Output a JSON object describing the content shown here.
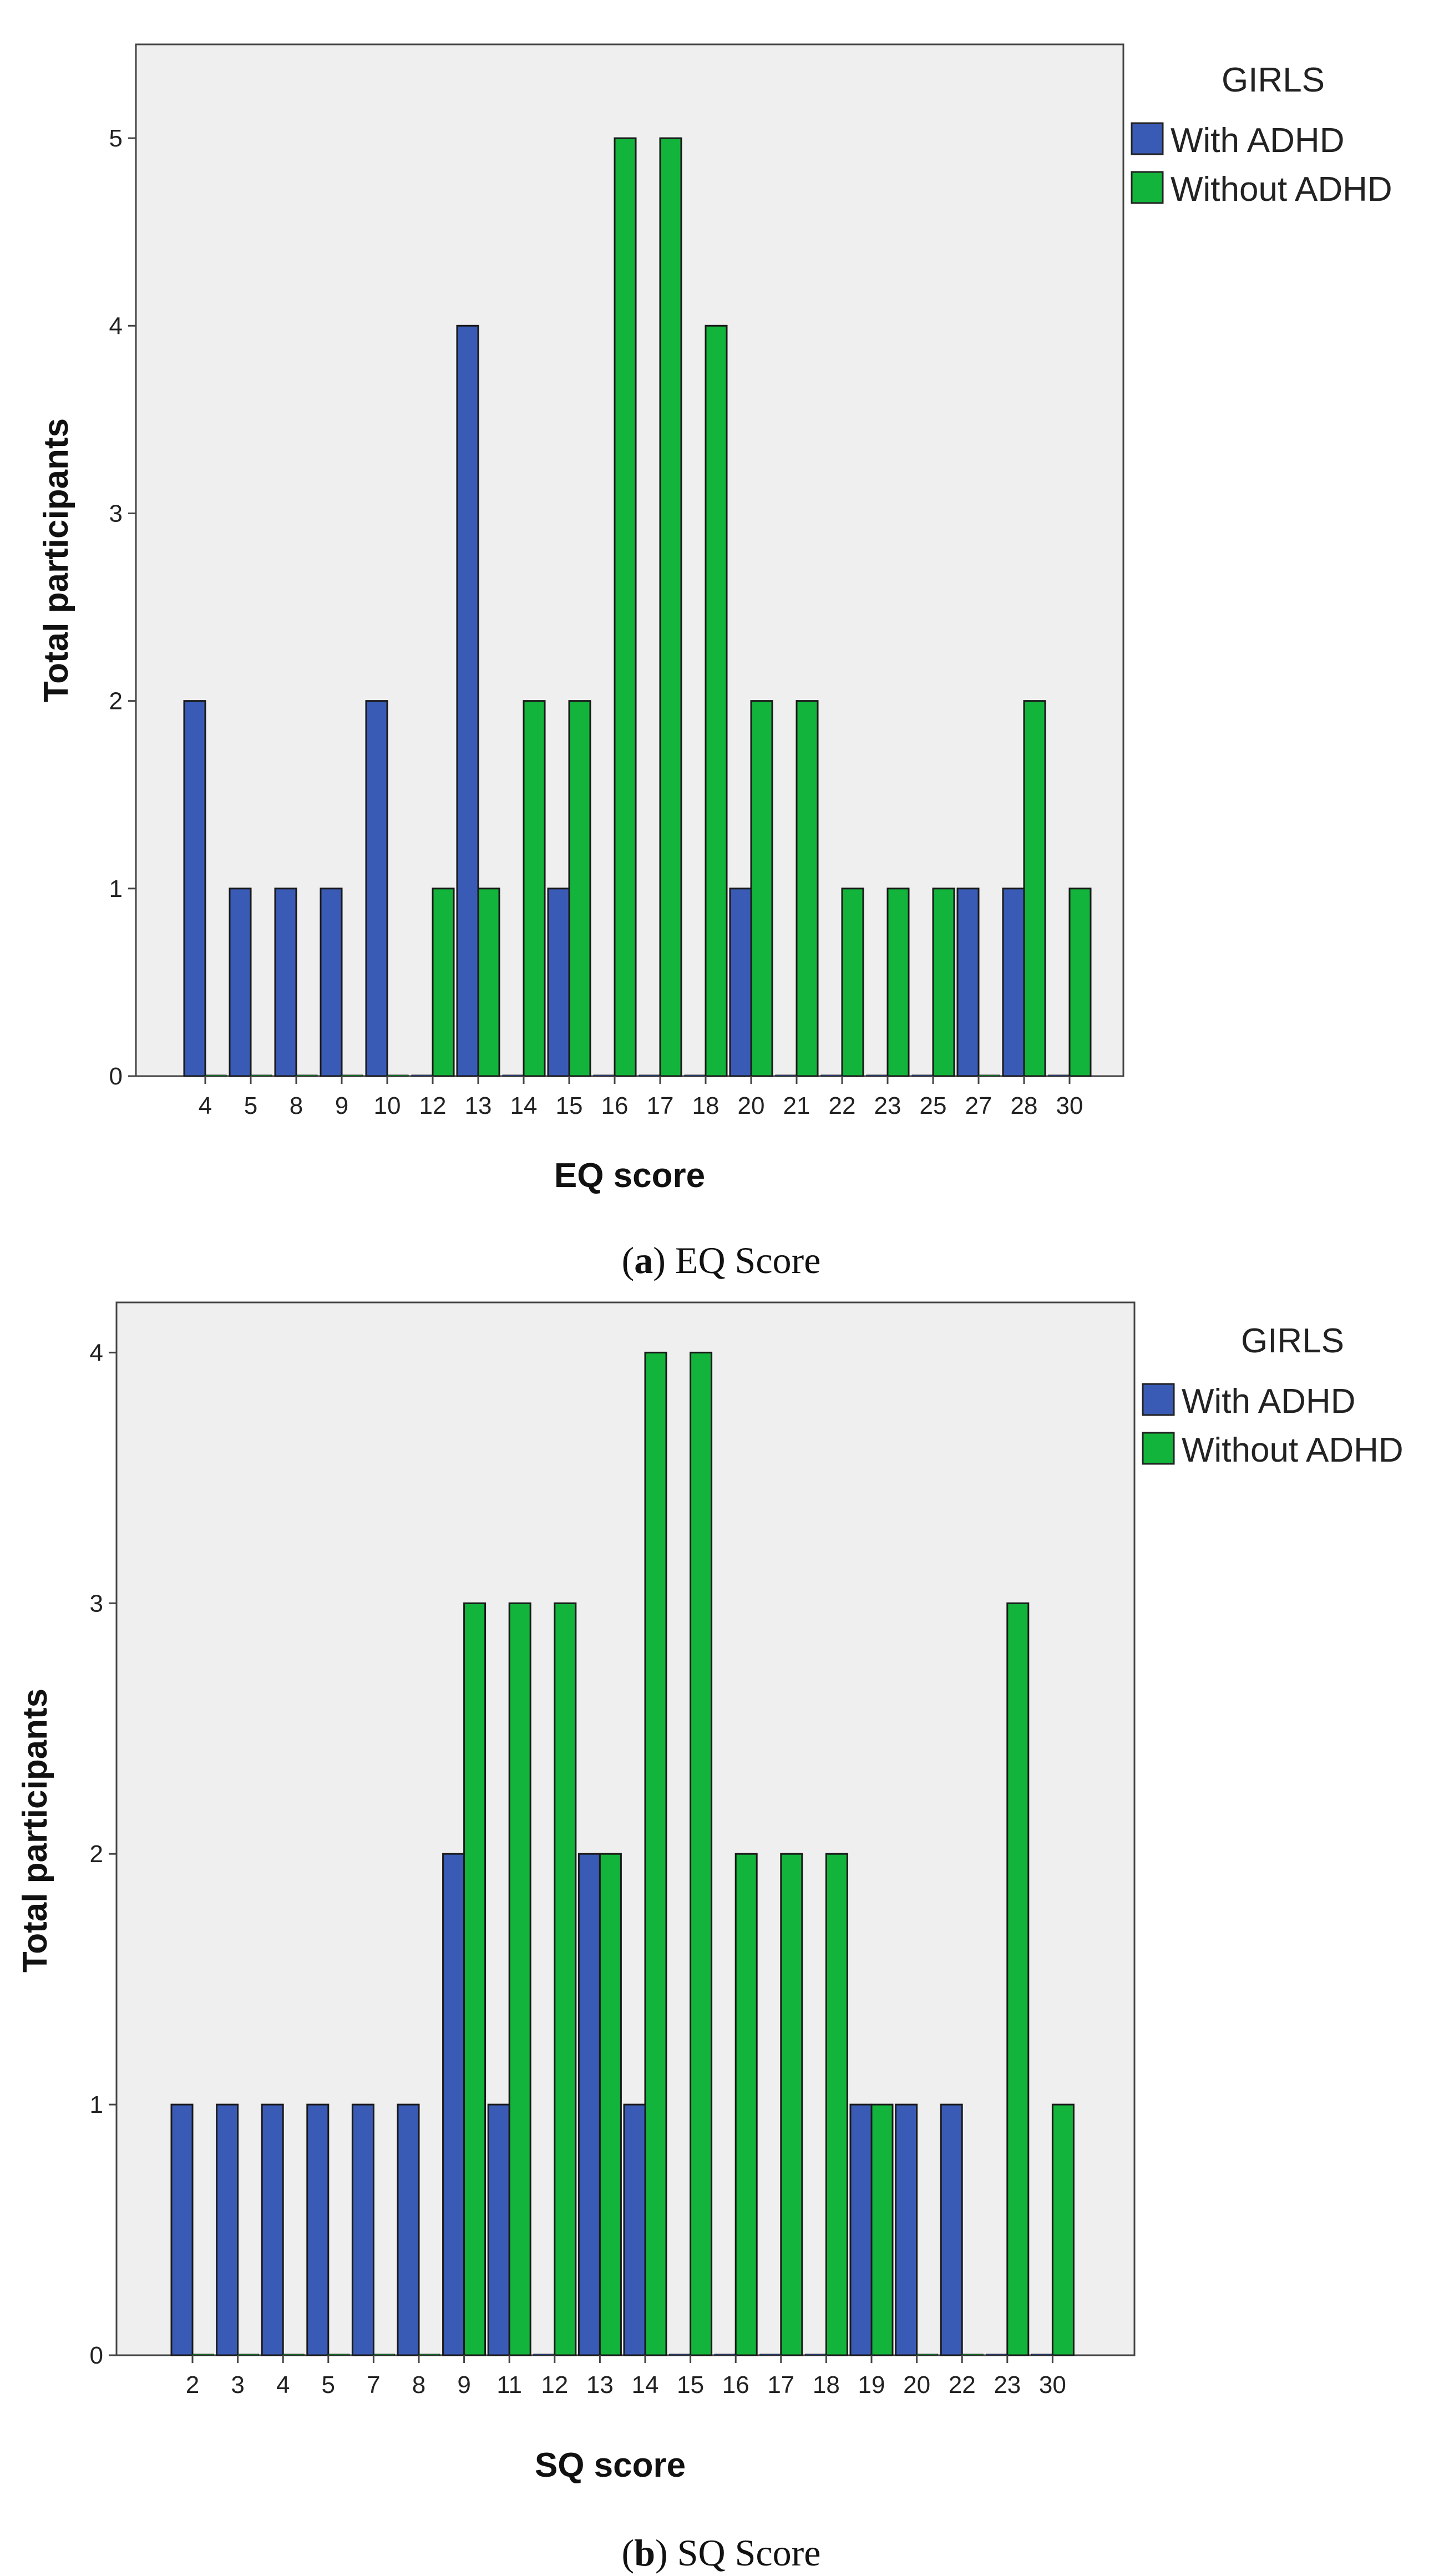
{
  "colors": {
    "with_adhd": "#3a5bb5",
    "without_adhd": "#13b43b",
    "plot_bg": "#efefef"
  },
  "chart_data": [
    {
      "type": "bar",
      "panel_letter": "a",
      "caption": "EQ Score",
      "xlabel": "EQ score",
      "ylabel": "Total participants",
      "ylim": [
        0,
        5.5
      ],
      "yticks": [
        "0",
        "1",
        "2",
        "3",
        "4",
        "5"
      ],
      "legend_title": "GIRLS",
      "categories": [
        "4",
        "5",
        "8",
        "9",
        "10",
        "12",
        "13",
        "14",
        "15",
        "16",
        "17",
        "18",
        "20",
        "21",
        "22",
        "23",
        "25",
        "27",
        "28",
        "30"
      ],
      "series": [
        {
          "name": "With ADHD",
          "values": [
            2,
            1,
            1,
            1,
            2,
            0,
            4,
            0,
            1,
            0,
            0,
            0,
            1,
            0,
            0,
            0,
            0,
            1,
            1,
            0
          ]
        },
        {
          "name": "Without ADHD",
          "values": [
            0,
            0,
            0,
            0,
            0,
            1,
            1,
            2,
            2,
            5,
            5,
            4,
            2,
            2,
            1,
            1,
            1,
            0,
            2,
            1
          ]
        }
      ]
    },
    {
      "type": "bar",
      "panel_letter": "b",
      "caption": "SQ Score",
      "xlabel": "SQ score",
      "ylabel": "Total participants",
      "ylim": [
        0,
        4.2
      ],
      "yticks": [
        "0",
        "1",
        "2",
        "3",
        "4"
      ],
      "legend_title": "GIRLS",
      "categories": [
        "2",
        "3",
        "4",
        "5",
        "7",
        "8",
        "9",
        "11",
        "12",
        "13",
        "14",
        "15",
        "16",
        "17",
        "18",
        "19",
        "20",
        "22",
        "23",
        "30"
      ],
      "series": [
        {
          "name": "With ADHD",
          "values": [
            1,
            1,
            1,
            1,
            1,
            1,
            2,
            1,
            0,
            2,
            1,
            0,
            0,
            0,
            0,
            1,
            1,
            1,
            0,
            0
          ]
        },
        {
          "name": "Without ADHD",
          "values": [
            0,
            0,
            0,
            0,
            0,
            0,
            3,
            3,
            3,
            2,
            4,
            4,
            2,
            2,
            2,
            1,
            0,
            0,
            3,
            1
          ]
        }
      ]
    }
  ]
}
